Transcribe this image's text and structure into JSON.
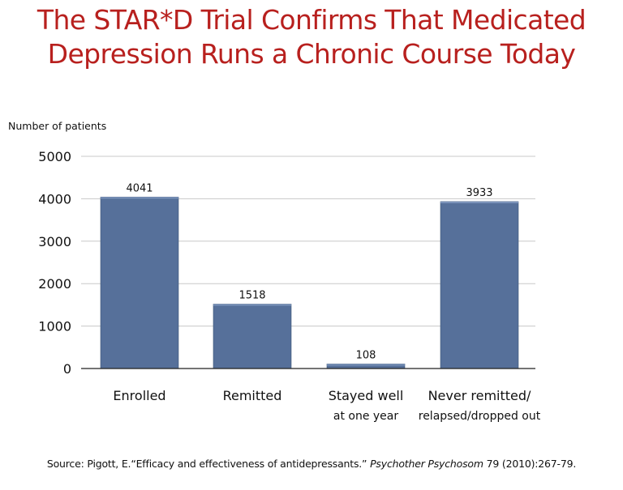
{
  "title": {
    "line1": "The STAR*D Trial Confirms That Medicated",
    "line2": "Depression Runs a Chronic Course Today"
  },
  "source": {
    "prefix": "Source: Pigott, E.“Efficacy and effectiveness of antidepressants.” ",
    "journal": "Psychother Psychosom",
    "suffix": " 79 (2010):267-79."
  },
  "colors": {
    "title": "#b8201e",
    "bar": "#56709a",
    "bar_top": "#7b94bb",
    "grid": "#c8c8c8"
  },
  "chart_data": {
    "type": "bar",
    "ylabel": "Number of patients",
    "ylim": [
      0,
      5000
    ],
    "yticks": [
      "0",
      "1000",
      "2000",
      "3000",
      "4000",
      "5000"
    ],
    "categories": [
      [
        "Enrolled"
      ],
      [
        "Remitted"
      ],
      [
        "Stayed well",
        "at  one year"
      ],
      [
        "Never remitted/",
        "relapsed/dropped out"
      ]
    ],
    "values": [
      4041,
      1518,
      108,
      3933
    ],
    "data_labels": [
      "4041",
      "1518",
      "108",
      "3933"
    ],
    "grid": true
  }
}
